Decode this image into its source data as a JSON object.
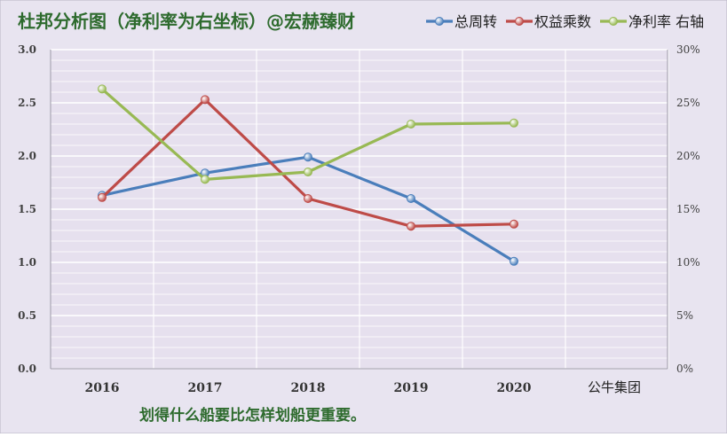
{
  "chart_data": {
    "type": "line",
    "title": "杜邦分析图（净利率为右坐标）@宏赫臻财",
    "categories": [
      "2016",
      "2017",
      "2018",
      "2019",
      "2020"
    ],
    "extra_category_label": "公牛集团",
    "subtitle": "划得什么船要比怎样划船更重要。",
    "y_left": {
      "min": 0,
      "max": 3.0,
      "ticks": [
        "0.0",
        "0.5",
        "1.0",
        "1.5",
        "2.0",
        "2.5",
        "3.0"
      ]
    },
    "y_right": {
      "min": 0,
      "max": 30,
      "unit": "%",
      "ticks": [
        "0%",
        "5%",
        "10%",
        "15%",
        "20%",
        "25%",
        "30%"
      ]
    },
    "grid": true,
    "legend_position": "top-right",
    "series": [
      {
        "name": "总周转",
        "axis": "left",
        "color": "#4A7EBB",
        "values": [
          1.63,
          1.84,
          1.99,
          1.6,
          1.01
        ]
      },
      {
        "name": "权益乘数",
        "axis": "left",
        "color": "#BE4B48",
        "values": [
          1.61,
          2.53,
          1.6,
          1.34,
          1.36
        ]
      },
      {
        "name": "净利率 右轴",
        "axis": "right",
        "color": "#98B954",
        "values": [
          26.3,
          17.8,
          18.5,
          23.0,
          23.1
        ]
      }
    ],
    "colors": {
      "background": "#E8E4F0",
      "title": "#2E6B2E",
      "subtitle": "#2E6B2E",
      "grid": "#FFFFFF",
      "axis_text": "#404040"
    }
  }
}
